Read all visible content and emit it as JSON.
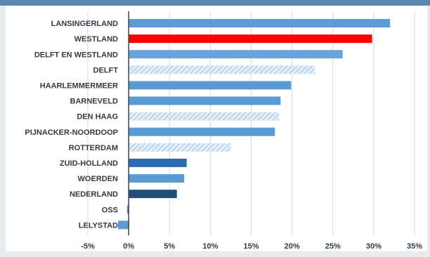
{
  "chart_data": {
    "type": "bar",
    "orientation": "horizontal",
    "categories": [
      "LANSINGERLAND",
      "WESTLAND",
      "DELFT EN WESTLAND",
      "DELFT",
      "HAARLEMMERMEER",
      "BARNEVELD",
      "DEN HAAG",
      "PIJNACKER-NOORDOOP",
      "ROTTERDAM",
      "ZUID-HOLLAND",
      "WOERDEN",
      "NEDERLAND",
      "OSS",
      "LELYSTAD"
    ],
    "values": [
      32.0,
      29.8,
      26.2,
      22.8,
      19.9,
      18.6,
      18.4,
      17.9,
      12.5,
      7.1,
      6.8,
      5.9,
      -0.2,
      -1.3
    ],
    "bar_styles": [
      "solid",
      "highlight",
      "dotted",
      "hatched",
      "solid",
      "solid",
      "hatched",
      "solid",
      "hatched",
      "dark",
      "solid",
      "darkest",
      "solid",
      "solid"
    ],
    "xlim": [
      -5,
      35
    ],
    "xticks": [
      "-5%",
      "0%",
      "5%",
      "10%",
      "15%",
      "20%",
      "25%",
      "30%",
      "35%"
    ],
    "xlabel": "",
    "ylabel": "",
    "title": "",
    "grid": "vertical",
    "colors": {
      "solid": "#5b9bd5",
      "highlight": "#ff0000",
      "dotted": "#5b9bd5",
      "hatched": "#bcd3ea",
      "dark": "#2e6ab0",
      "darkest": "#1f4e79",
      "grid": "#d9d9d9",
      "axis": "#404040"
    }
  }
}
